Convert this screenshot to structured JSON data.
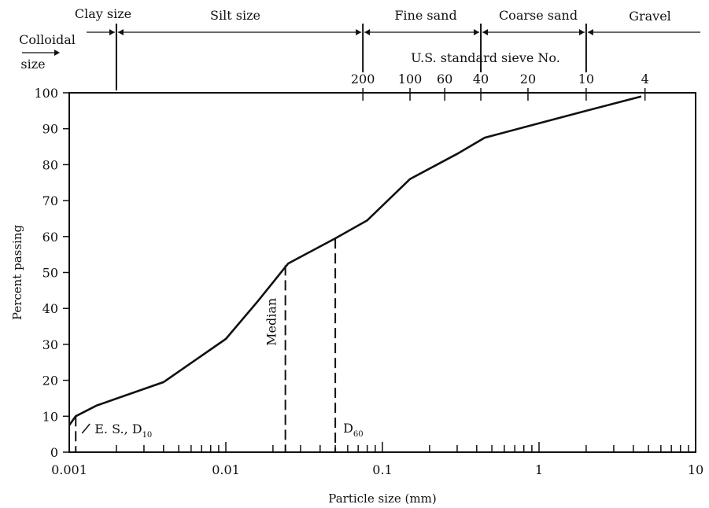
{
  "chart_data": {
    "type": "line",
    "xscale": "log",
    "xlabel": "Particle size (mm)",
    "ylabel": "Percent passing",
    "xlim": [
      0.001,
      10
    ],
    "ylim": [
      0,
      100
    ],
    "x_ticks": [
      "0.001",
      "0.01",
      "0.1",
      "1",
      "10"
    ],
    "y_ticks": [
      "0",
      "10",
      "20",
      "30",
      "40",
      "50",
      "60",
      "70",
      "80",
      "90",
      "100"
    ],
    "grid": false,
    "series": [
      {
        "x": [
          0.001,
          0.0011,
          0.0015,
          0.004,
          0.01,
          0.016,
          0.025,
          0.05,
          0.08,
          0.15,
          0.3,
          0.45,
          1.0,
          2.0,
          4.5
        ],
        "y": [
          7.5,
          10,
          13,
          19.5,
          31.5,
          42,
          52.5,
          59.5,
          64.5,
          76,
          83,
          87.5,
          91.5,
          95,
          99
        ]
      }
    ],
    "markers": [
      {
        "label": "E. S., D",
        "subscript": "10",
        "x": 0.0011,
        "y": 10
      },
      {
        "label": "Median",
        "x": 0.024,
        "y": 52
      },
      {
        "label": "D",
        "subscript": "60",
        "x": 0.05,
        "y": 59.5
      }
    ],
    "sieves": {
      "title": "U.S. standard sieve No.",
      "items": [
        {
          "label": "200",
          "size": 0.075
        },
        {
          "label": "100",
          "size": 0.15
        },
        {
          "label": "60",
          "size": 0.25
        },
        {
          "label": "40",
          "size": 0.425
        },
        {
          "label": "20",
          "size": 0.85
        },
        {
          "label": "10",
          "size": 2.0
        },
        {
          "label": "4",
          "size": 4.75
        }
      ]
    },
    "size_classes": [
      {
        "label": "Colloidal size"
      },
      {
        "label": "Clay size",
        "from": 0.001,
        "to": 0.002
      },
      {
        "label": "Silt size",
        "from": 0.002,
        "to": 0.075
      },
      {
        "label": "Fine sand",
        "from": 0.075,
        "to": 0.425
      },
      {
        "label": "Coarse sand",
        "from": 0.425,
        "to": 2.0
      },
      {
        "label": "Gravel",
        "from": 2.0,
        "to": 10
      }
    ]
  }
}
